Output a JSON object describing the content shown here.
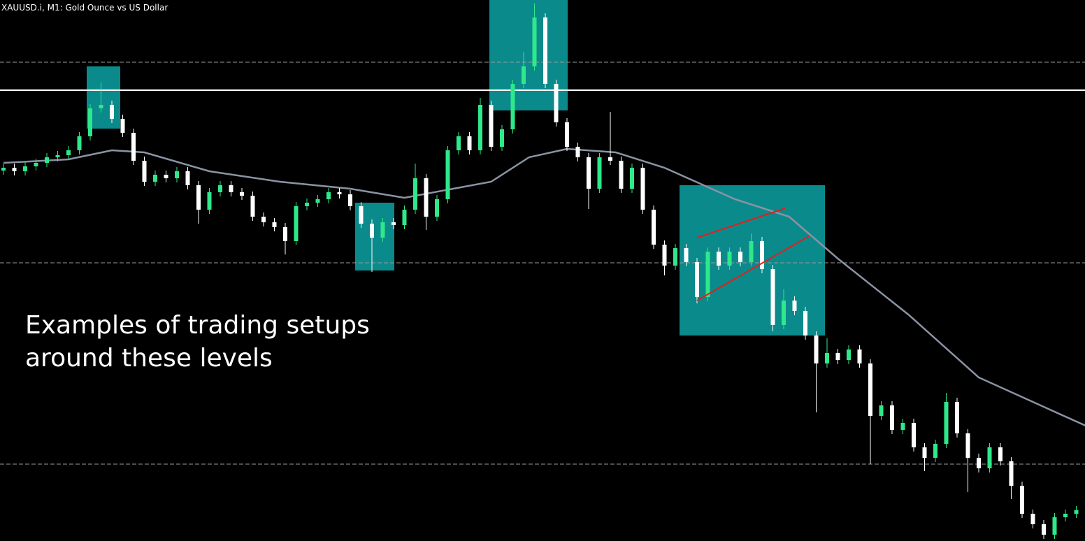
{
  "chart_data": {
    "type": "candlestick",
    "title": "XAUUSD.i, M1:  Gold Ounce vs US Dollar",
    "annotation": [
      "Examples of trading setups",
      "around these levels"
    ],
    "ylim": [
      0,
      774
    ],
    "up_color": "#2ee88a",
    "down_color": "#ffffff",
    "open": [
      530,
      534,
      529,
      536,
      541,
      549,
      552,
      559,
      579,
      619,
      624,
      604,
      584,
      544,
      514,
      524,
      519,
      529,
      509,
      474,
      499,
      509,
      499,
      494,
      464,
      456,
      449,
      429,
      479,
      484,
      489,
      499,
      496,
      479,
      454,
      434,
      456,
      452,
      474,
      519,
      464,
      489,
      559,
      579,
      559,
      624,
      564,
      589,
      654,
      679,
      749,
      654,
      599,
      564,
      549,
      504,
      549,
      544,
      504,
      534,
      474,
      424,
      394,
      419,
      399,
      349,
      414,
      394,
      414,
      399,
      429,
      389,
      309,
      344,
      329,
      294,
      254,
      269,
      259,
      274,
      254,
      179,
      194,
      159,
      169,
      134,
      119,
      139,
      199,
      154,
      119,
      104,
      134,
      114,
      79,
      39,
      24,
      9,
      34,
      39
    ],
    "high": [
      540,
      540,
      542,
      547,
      555,
      558,
      565,
      585,
      625,
      656,
      630,
      610,
      590,
      550,
      530,
      530,
      535,
      535,
      515,
      505,
      515,
      515,
      505,
      500,
      470,
      462,
      455,
      485,
      490,
      495,
      505,
      505,
      502,
      485,
      460,
      462,
      462,
      480,
      540,
      525,
      495,
      565,
      585,
      585,
      634,
      630,
      595,
      660,
      700,
      769,
      755,
      660,
      605,
      570,
      555,
      555,
      614,
      550,
      540,
      540,
      480,
      430,
      425,
      425,
      405,
      420,
      420,
      420,
      420,
      440,
      435,
      395,
      360,
      350,
      335,
      300,
      290,
      275,
      280,
      280,
      260,
      200,
      200,
      175,
      175,
      140,
      145,
      212,
      205,
      160,
      125,
      140,
      140,
      120,
      85,
      45,
      30,
      40,
      45,
      50
    ],
    "low": [
      524,
      523,
      523,
      530,
      535,
      543,
      546,
      553,
      573,
      613,
      598,
      578,
      538,
      508,
      508,
      513,
      513,
      503,
      454,
      468,
      493,
      493,
      488,
      458,
      450,
      443,
      410,
      423,
      473,
      478,
      483,
      490,
      473,
      448,
      385,
      428,
      446,
      446,
      468,
      445,
      458,
      483,
      553,
      553,
      553,
      558,
      558,
      583,
      648,
      673,
      648,
      593,
      558,
      543,
      475,
      498,
      538,
      498,
      498,
      468,
      418,
      380,
      388,
      393,
      340,
      343,
      388,
      388,
      393,
      393,
      383,
      300,
      303,
      323,
      288,
      184,
      248,
      253,
      253,
      248,
      110,
      173,
      153,
      153,
      128,
      100,
      113,
      133,
      148,
      70,
      98,
      98,
      108,
      60,
      33,
      18,
      3,
      3,
      28,
      33
    ],
    "close": [
      534,
      529,
      536,
      541,
      549,
      552,
      559,
      579,
      619,
      624,
      604,
      584,
      544,
      514,
      524,
      519,
      529,
      509,
      474,
      499,
      509,
      499,
      494,
      464,
      456,
      449,
      429,
      479,
      484,
      489,
      499,
      496,
      479,
      454,
      434,
      456,
      452,
      474,
      519,
      464,
      489,
      559,
      579,
      559,
      624,
      564,
      589,
      654,
      679,
      749,
      654,
      599,
      564,
      549,
      504,
      549,
      544,
      504,
      534,
      474,
      424,
      394,
      419,
      399,
      349,
      414,
      394,
      414,
      399,
      429,
      389,
      309,
      344,
      329,
      294,
      254,
      269,
      259,
      274,
      254,
      179,
      194,
      159,
      169,
      134,
      119,
      139,
      199,
      154,
      119,
      104,
      134,
      114,
      79,
      39,
      24,
      9,
      34,
      39,
      44
    ],
    "ma": {
      "color": "#8a93a3",
      "x": [
        0,
        6,
        10,
        13,
        19,
        25.5,
        32,
        37,
        41.5,
        45,
        48.5,
        52,
        56.5,
        61,
        67.5,
        72.5,
        77,
        83.5,
        90,
        100
      ],
      "values": [
        541,
        546,
        559,
        556,
        529,
        514,
        504,
        491,
        504,
        514,
        549,
        561,
        556,
        534,
        489,
        464,
        404,
        324,
        234,
        164
      ]
    },
    "levels": [
      {
        "value": 685,
        "style": "dashed"
      },
      {
        "value": 645,
        "style": "solid"
      },
      {
        "value": 398,
        "style": "dashed"
      },
      {
        "value": 110,
        "style": "dashed"
      }
    ]
  }
}
